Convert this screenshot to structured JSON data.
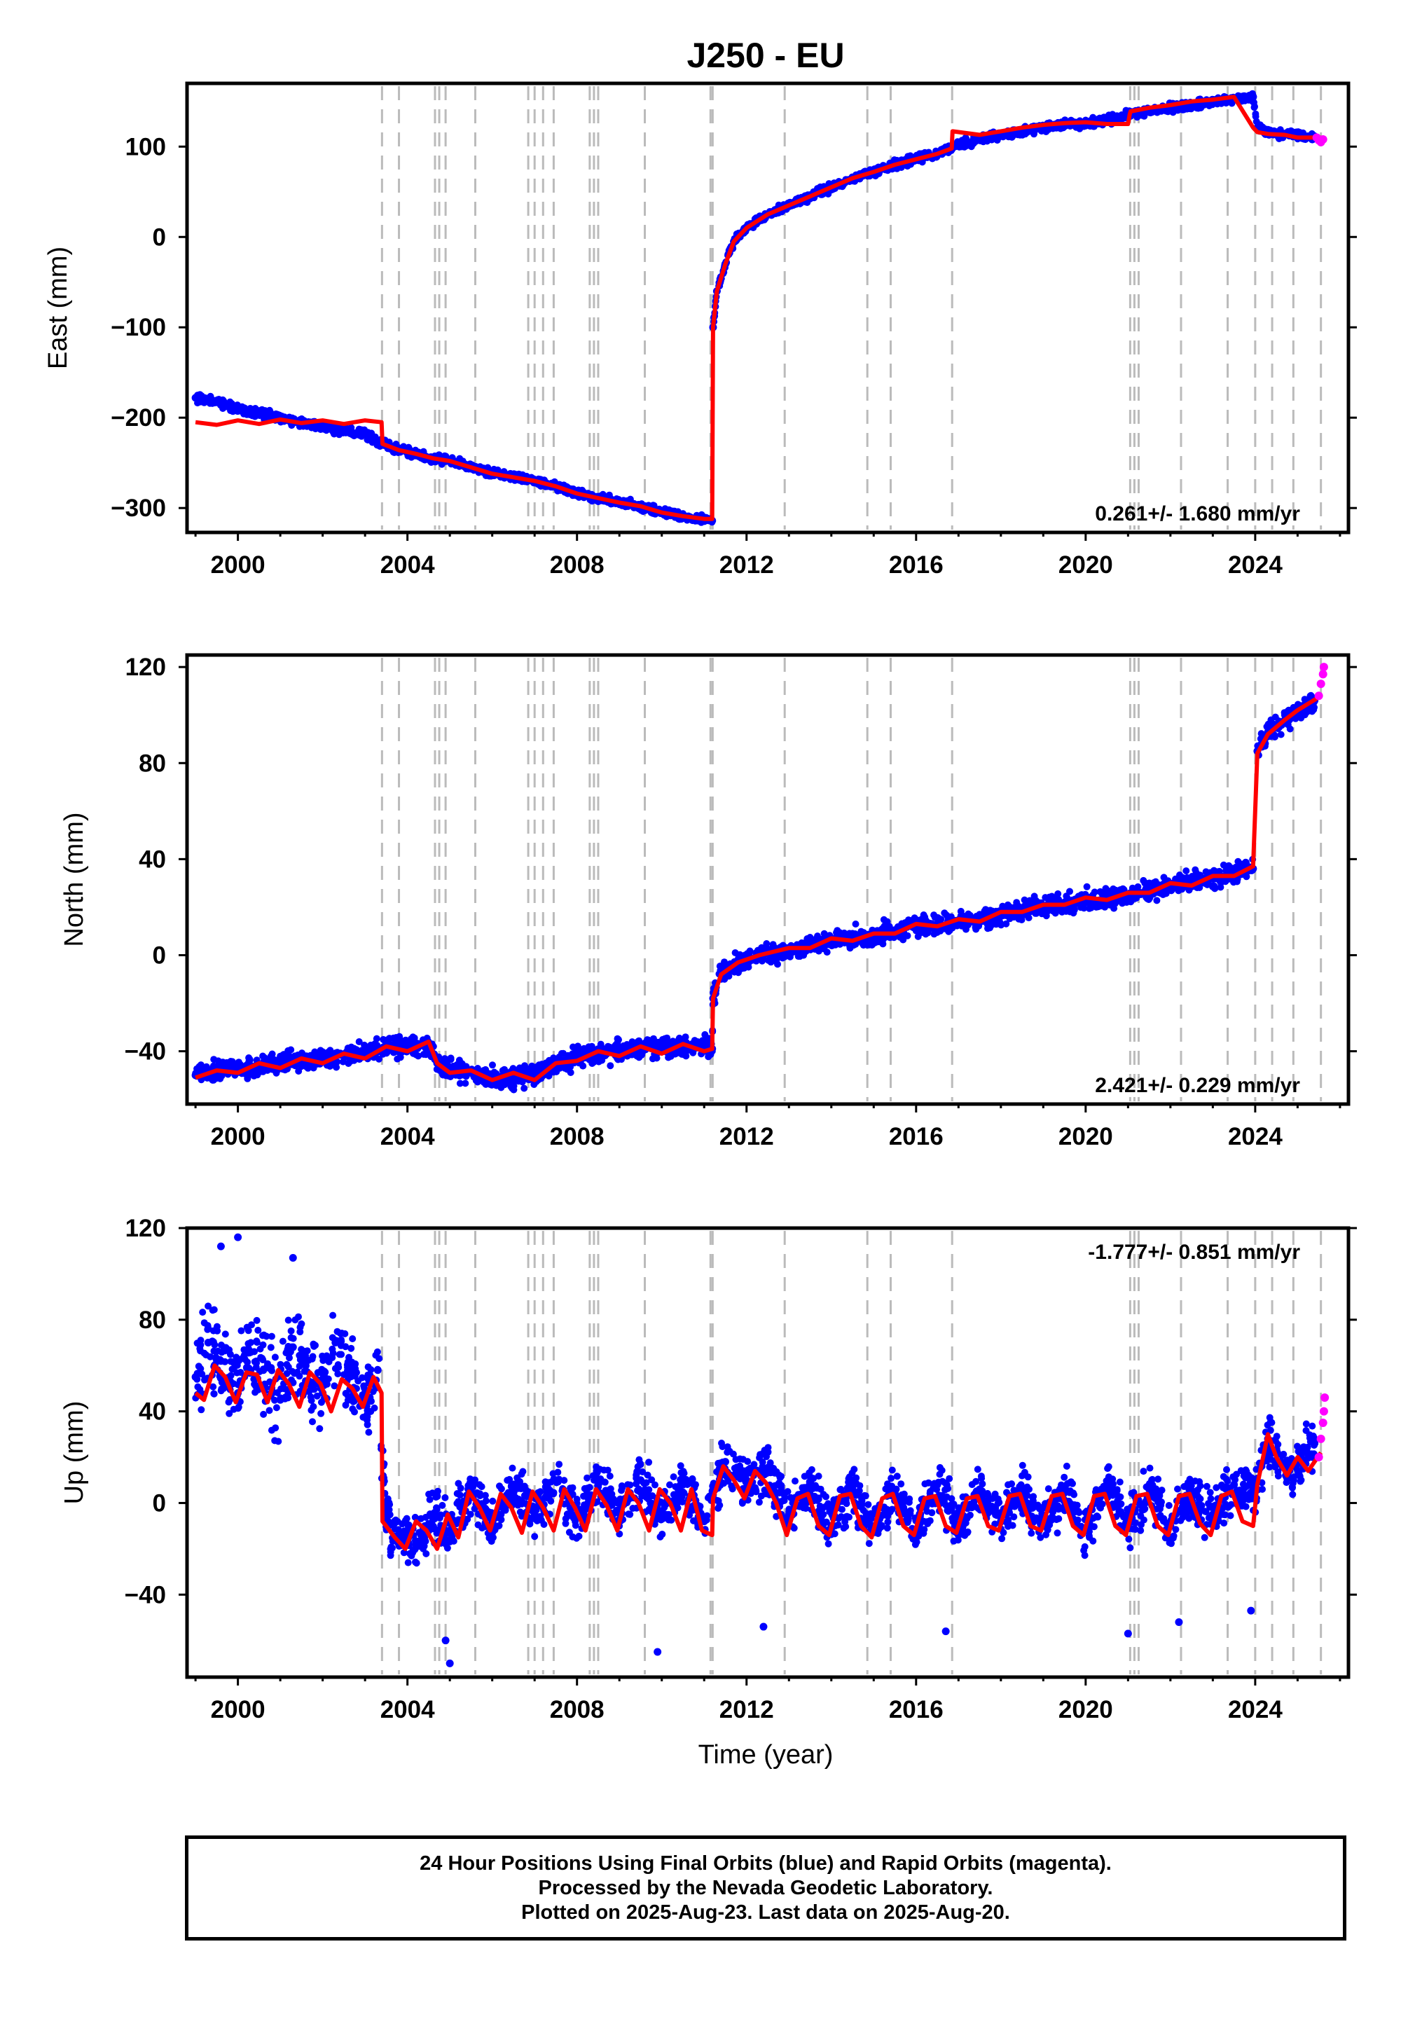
{
  "title": "J250 - EU",
  "colors": {
    "final": "#0000ff",
    "rapid": "#ff00ff",
    "model": "#ff0000",
    "event": "#bbbbbb"
  },
  "event_years": [
    2003.4,
    2003.8,
    2004.65,
    2004.75,
    2004.9,
    2005.6,
    2006.85,
    2007.0,
    2007.2,
    2007.45,
    2008.3,
    2008.4,
    2008.5,
    2009.6,
    2011.15,
    2011.2,
    2012.9,
    2014.85,
    2015.4,
    2016.85,
    2021.05,
    2021.15,
    2021.25,
    2022.25,
    2023.35,
    2024.0,
    2024.4,
    2024.9,
    2025.55
  ],
  "chart_data": [
    {
      "type": "scatter",
      "panel": "east",
      "ylabel": "East (mm)",
      "rate": "0.261+/- 1.680 mm/yr",
      "xlim": [
        1998.8,
        2026.2
      ],
      "ylim": [
        -327,
        170
      ],
      "xticks": [
        2000,
        2004,
        2008,
        2012,
        2016,
        2020,
        2024
      ],
      "yticks": [
        -300,
        -200,
        -100,
        0,
        100
      ],
      "ytick_labels": [
        "−300",
        "−200",
        "−100",
        "0",
        "100"
      ],
      "series": [
        {
          "key": "final",
          "x": [
            1999.0,
            1999.5,
            2000.0,
            2000.5,
            2001.0,
            2001.5,
            2002.0,
            2002.5,
            2003.0,
            2003.4,
            2003.8,
            2004.2,
            2004.6,
            2005.0,
            2005.5,
            2006.0,
            2006.5,
            2007.0,
            2007.5,
            2008.0,
            2008.5,
            2009.0,
            2009.5,
            2010.0,
            2010.5,
            2011.0,
            2011.19,
            2011.21,
            2011.3,
            2011.5,
            2011.7,
            2012.0,
            2012.5,
            2013.0,
            2013.5,
            2014.0,
            2014.5,
            2015.0,
            2015.5,
            2016.0,
            2016.5,
            2016.8,
            2017.0,
            2017.5,
            2018.0,
            2018.5,
            2019.0,
            2019.5,
            2020.0,
            2020.5,
            2021.0,
            2021.5,
            2022.0,
            2022.5,
            2023.0,
            2023.5,
            2023.95,
            2024.05,
            2024.3,
            2024.7,
            2025.0,
            2025.4
          ],
          "y": [
            -178,
            -183,
            -190,
            -195,
            -200,
            -205,
            -210,
            -214,
            -218,
            -228,
            -236,
            -240,
            -245,
            -248,
            -255,
            -262,
            -266,
            -270,
            -276,
            -284,
            -289,
            -294,
            -298,
            -305,
            -309,
            -312,
            -314,
            -100,
            -60,
            -30,
            -5,
            10,
            25,
            35,
            45,
            55,
            65,
            72,
            80,
            86,
            92,
            98,
            103,
            108,
            113,
            117,
            121,
            124,
            125,
            129,
            135,
            139,
            143,
            146,
            150,
            152,
            155,
            121,
            116,
            114,
            113,
            110
          ]
        },
        {
          "key": "rapid",
          "x": [
            2025.45,
            2025.5,
            2025.55,
            2025.6
          ],
          "y": [
            110,
            107,
            105,
            108
          ]
        }
      ],
      "model": {
        "x": [
          1999.0,
          1999.5,
          2000.0,
          2000.5,
          2001.0,
          2001.5,
          2002.0,
          2002.5,
          2003.0,
          2003.39,
          2003.41,
          2003.8,
          2004.2,
          2004.6,
          2005.0,
          2005.5,
          2006.0,
          2006.5,
          2007.0,
          2007.5,
          2008.0,
          2008.5,
          2009.0,
          2009.5,
          2010.0,
          2010.5,
          2011.0,
          2011.19,
          2011.21,
          2011.3,
          2011.5,
          2011.7,
          2012.0,
          2012.5,
          2013.0,
          2013.5,
          2014.0,
          2014.5,
          2015.0,
          2015.5,
          2016.0,
          2016.5,
          2016.84,
          2016.86,
          2017.5,
          2018.0,
          2018.5,
          2019.0,
          2019.5,
          2020.0,
          2020.5,
          2021.0,
          2021.04,
          2021.06,
          2021.5,
          2022.0,
          2022.5,
          2023.0,
          2023.5,
          2023.95,
          2024.05,
          2024.3,
          2024.7,
          2025.0,
          2025.55
        ],
        "y": [
          -205,
          -208,
          -203,
          -207,
          -202,
          -206,
          -203,
          -207,
          -203,
          -205,
          -229,
          -236,
          -240,
          -245,
          -248,
          -255,
          -262,
          -266,
          -270,
          -276,
          -284,
          -289,
          -294,
          -298,
          -305,
          -309,
          -312,
          -312,
          -100,
          -60,
          -30,
          -5,
          10,
          25,
          35,
          45,
          55,
          65,
          72,
          80,
          86,
          92,
          98,
          117,
          113,
          117,
          121,
          124,
          126,
          127,
          125,
          125,
          136,
          139,
          143,
          146,
          150,
          152,
          155,
          121,
          116,
          114,
          113,
          110,
          110
        ]
      }
    },
    {
      "type": "scatter",
      "panel": "north",
      "ylabel": "North (mm)",
      "rate": "2.421+/- 0.229 mm/yr",
      "xlim": [
        1998.8,
        2026.2
      ],
      "ylim": [
        -62,
        125
      ],
      "xticks": [
        2000,
        2004,
        2008,
        2012,
        2016,
        2020,
        2024
      ],
      "yticks": [
        -40,
        0,
        40,
        80,
        120
      ],
      "ytick_labels": [
        "−40",
        "0",
        "40",
        "80",
        "120"
      ],
      "series": [
        {
          "key": "final",
          "x": [
            1999.0,
            1999.5,
            2000.0,
            2000.5,
            2001.0,
            2001.5,
            2002.0,
            2002.5,
            2003.0,
            2003.5,
            2004.0,
            2004.5,
            2004.7,
            2005.0,
            2005.5,
            2006.0,
            2006.5,
            2007.0,
            2007.5,
            2008.0,
            2008.5,
            2009.0,
            2009.5,
            2010.0,
            2010.5,
            2011.0,
            2011.19,
            2011.21,
            2011.4,
            2011.8,
            2012.3,
            2013.0,
            2013.5,
            2014.0,
            2014.5,
            2015.0,
            2015.5,
            2016.0,
            2016.5,
            2017.0,
            2017.5,
            2018.0,
            2018.5,
            2019.0,
            2019.5,
            2020.0,
            2020.5,
            2021.0,
            2021.5,
            2022.0,
            2022.5,
            2023.0,
            2023.5,
            2023.95,
            2024.05,
            2024.3,
            2024.7,
            2025.0,
            2025.4
          ],
          "y": [
            -50,
            -48,
            -47,
            -46,
            -45,
            -44,
            -43,
            -42,
            -41,
            -38,
            -38,
            -37,
            -45,
            -48,
            -49,
            -51,
            -51,
            -50,
            -46,
            -42,
            -41,
            -40,
            -39,
            -39,
            -38,
            -38,
            -39,
            -18,
            -8,
            -3,
            0,
            2,
            4,
            6,
            7,
            8,
            10,
            12,
            13,
            14,
            15,
            17,
            19,
            20,
            22,
            23,
            24,
            25,
            27,
            29,
            30,
            32,
            34,
            36,
            85,
            92,
            98,
            102,
            106
          ]
        },
        {
          "key": "rapid",
          "x": [
            2025.5,
            2025.55,
            2025.6,
            2025.62
          ],
          "y": [
            108,
            113,
            117,
            120
          ]
        }
      ],
      "model": {
        "x": [
          1999.0,
          1999.5,
          2000.0,
          2000.5,
          2001.0,
          2001.5,
          2002.0,
          2002.5,
          2003.0,
          2003.5,
          2004.0,
          2004.5,
          2004.7,
          2005.0,
          2005.5,
          2006.0,
          2006.5,
          2007.0,
          2007.5,
          2008.0,
          2008.5,
          2009.0,
          2009.5,
          2010.0,
          2010.5,
          2011.0,
          2011.19,
          2011.21,
          2011.4,
          2011.8,
          2012.3,
          2013.0,
          2013.5,
          2014.0,
          2014.5,
          2015.0,
          2015.5,
          2016.0,
          2016.5,
          2017.0,
          2017.5,
          2018.0,
          2018.5,
          2019.0,
          2019.5,
          2020.0,
          2020.5,
          2021.0,
          2021.5,
          2022.0,
          2022.5,
          2023.0,
          2023.5,
          2023.95,
          2024.05,
          2024.3,
          2024.7,
          2025.0,
          2025.55
        ],
        "y": [
          -51,
          -48,
          -49,
          -45,
          -47,
          -43,
          -45,
          -41,
          -43,
          -38,
          -40,
          -36,
          -45,
          -49,
          -48,
          -52,
          -49,
          -52,
          -45,
          -44,
          -40,
          -42,
          -38,
          -41,
          -37,
          -40,
          -39,
          -18,
          -8,
          -3,
          0,
          3,
          3,
          7,
          6,
          9,
          9,
          13,
          12,
          15,
          14,
          18,
          18,
          21,
          21,
          24,
          23,
          26,
          26,
          30,
          29,
          33,
          33,
          37,
          84,
          92,
          98,
          102,
          108
        ]
      }
    },
    {
      "type": "scatter",
      "panel": "up",
      "ylabel": "Up (mm)",
      "xlabel": "Time (year)",
      "rate": "-1.777+/- 0.851 mm/yr",
      "xlim": [
        1998.8,
        2026.2
      ],
      "ylim": [
        -76,
        120
      ],
      "xticks": [
        2000,
        2004,
        2008,
        2012,
        2016,
        2020,
        2024
      ],
      "yticks": [
        -40,
        0,
        40,
        80,
        120
      ],
      "ytick_labels": [
        "−40",
        "0",
        "40",
        "80",
        "120"
      ],
      "series": [
        {
          "key": "final",
          "x": [
            1999.0,
            1999.3,
            1999.6,
            2000.0,
            2000.3,
            2000.6,
            2001.0,
            2001.3,
            2001.6,
            2002.0,
            2002.3,
            2002.6,
            2003.0,
            2003.3,
            2003.5,
            2003.8,
            2004.2,
            2004.6,
            2005.0,
            2005.5,
            2006.0,
            2006.5,
            2007.0,
            2007.5,
            2008.0,
            2008.5,
            2009.0,
            2009.5,
            2010.0,
            2010.5,
            2011.0,
            2011.5,
            2012.0,
            2012.5,
            2013.0,
            2013.5,
            2014.0,
            2014.5,
            2015.0,
            2015.5,
            2016.0,
            2016.5,
            2017.0,
            2017.5,
            2018.0,
            2018.5,
            2019.0,
            2019.5,
            2020.0,
            2020.5,
            2021.0,
            2021.5,
            2022.0,
            2022.5,
            2023.0,
            2023.5,
            2024.0,
            2024.3,
            2024.6,
            2024.9,
            2025.2,
            2025.4,
            1999.6,
            2000.0,
            2001.3,
            2004.9,
            2005.0,
            2009.9,
            2012.4,
            2016.7,
            2021.0,
            2022.2,
            2023.9
          ],
          "y": [
            55,
            70,
            62,
            48,
            66,
            58,
            45,
            68,
            60,
            48,
            70,
            56,
            45,
            58,
            -5,
            -15,
            -18,
            -5,
            -12,
            5,
            -8,
            8,
            -5,
            10,
            -6,
            8,
            -3,
            10,
            -6,
            8,
            -8,
            18,
            10,
            14,
            -5,
            8,
            -10,
            6,
            -10,
            5,
            -12,
            8,
            -10,
            6,
            -8,
            6,
            -10,
            6,
            -12,
            8,
            -10,
            6,
            -10,
            4,
            -5,
            8,
            5,
            28,
            18,
            10,
            22,
            26,
            112,
            116,
            107,
            -60,
            -70,
            -65,
            -54,
            -56,
            -57,
            -52,
            -47
          ]
        },
        {
          "key": "rapid",
          "x": [
            2025.5,
            2025.55,
            2025.6,
            2025.62,
            2025.64
          ],
          "y": [
            20,
            28,
            35,
            40,
            46
          ]
        }
      ],
      "model": {
        "x": [
          1999.0,
          1999.2,
          1999.45,
          1999.7,
          1999.95,
          2000.2,
          2000.45,
          2000.7,
          2000.95,
          2001.2,
          2001.45,
          2001.7,
          2001.95,
          2002.2,
          2002.45,
          2002.7,
          2002.95,
          2003.2,
          2003.39,
          2003.41,
          2003.7,
          2003.95,
          2004.2,
          2004.45,
          2004.7,
          2004.95,
          2005.2,
          2005.45,
          2005.7,
          2005.95,
          2006.2,
          2006.45,
          2006.7,
          2006.95,
          2007.2,
          2007.45,
          2007.7,
          2007.95,
          2008.2,
          2008.45,
          2008.7,
          2008.95,
          2009.2,
          2009.45,
          2009.7,
          2009.95,
          2010.2,
          2010.45,
          2010.7,
          2010.95,
          2011.19,
          2011.21,
          2011.45,
          2011.7,
          2011.95,
          2012.2,
          2012.45,
          2012.7,
          2012.95,
          2013.2,
          2013.45,
          2013.7,
          2013.95,
          2014.2,
          2014.45,
          2014.7,
          2014.95,
          2015.2,
          2015.45,
          2015.7,
          2015.95,
          2016.2,
          2016.45,
          2016.7,
          2016.95,
          2017.2,
          2017.45,
          2017.7,
          2017.95,
          2018.2,
          2018.45,
          2018.7,
          2018.95,
          2019.2,
          2019.45,
          2019.7,
          2019.95,
          2020.2,
          2020.45,
          2020.7,
          2020.95,
          2021.2,
          2021.45,
          2021.7,
          2021.95,
          2022.2,
          2022.45,
          2022.7,
          2022.95,
          2023.2,
          2023.45,
          2023.7,
          2023.95,
          2024.05,
          2024.3,
          2024.5,
          2024.75,
          2025.0,
          2025.25,
          2025.55
        ],
        "y": [
          48,
          45,
          60,
          55,
          44,
          57,
          56,
          44,
          58,
          52,
          42,
          57,
          52,
          40,
          54,
          50,
          42,
          55,
          48,
          -8,
          -15,
          -20,
          -8,
          -12,
          -20,
          -5,
          -15,
          5,
          -2,
          -12,
          4,
          -2,
          -13,
          5,
          -2,
          -12,
          6,
          -2,
          -12,
          6,
          -1,
          -12,
          6,
          0,
          -12,
          6,
          0,
          -12,
          6,
          -12,
          -14,
          2,
          16,
          10,
          2,
          14,
          9,
          0,
          -14,
          2,
          4,
          -10,
          -14,
          3,
          4,
          -10,
          -15,
          2,
          4,
          -10,
          -14,
          2,
          3,
          -10,
          -13,
          2,
          3,
          -10,
          -12,
          3,
          4,
          -10,
          -12,
          3,
          4,
          -10,
          -14,
          3,
          4,
          -10,
          -14,
          3,
          4,
          -10,
          -14,
          3,
          4,
          -9,
          -14,
          3,
          5,
          -8,
          -10,
          8,
          30,
          20,
          12,
          20,
          14,
          22
        ]
      }
    }
  ],
  "footer": {
    "line1": "24 Hour Positions Using Final Orbits (blue) and Rapid Orbits (magenta).",
    "line2": "Processed by the Nevada Geodetic Laboratory.",
    "line3": "Plotted on 2025-Aug-23. Last data on 2025-Aug-20."
  }
}
